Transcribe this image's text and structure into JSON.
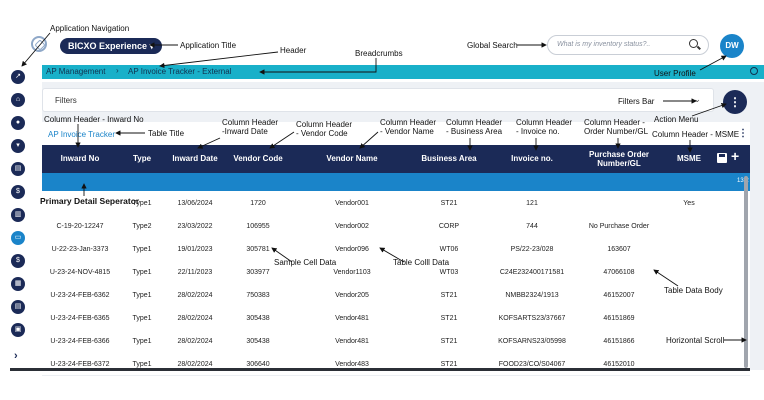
{
  "app": {
    "title": "BICXO Experience",
    "title_caret": "▾",
    "user_initials": "DW"
  },
  "search": {
    "placeholder": "What is my inventory status?.."
  },
  "breadcrumbs": [
    "AP Management",
    "AP Invoice Tracker - External"
  ],
  "breadcrumb_separator": "›",
  "filters": {
    "label": "Filters",
    "chevron": "⌄"
  },
  "action_menu_glyph": "⋮",
  "table": {
    "title": "AP Invoice Tracker",
    "menu_glyph": "⋮",
    "add_glyph": "+",
    "columns": [
      "Inward No",
      "Type",
      "Inward Date",
      "Vendor Code",
      "Vendor Name",
      "Business Area",
      "Invoice no.",
      "Purchase Order Number/GL",
      "MSME"
    ],
    "detail_separator_text": "13.2",
    "rows": [
      [
        "",
        "Type1",
        "13/06/2024",
        "1720",
        "Vendor001",
        "ST21",
        "121",
        "",
        "Yes"
      ],
      [
        "C-19-20-12247",
        "Type2",
        "23/03/2022",
        "106955",
        "Vendor002",
        "CORP",
        "744",
        "No Purchase Order",
        ""
      ],
      [
        "U-22-23-Jan-3373",
        "Type1",
        "19/01/2023",
        "305781",
        "Vendor096",
        "WT06",
        "PS/22-23/028",
        "163607",
        ""
      ],
      [
        "U-23-24-NOV-4815",
        "Type1",
        "22/11/2023",
        "303977",
        "Vendor1103",
        "WT03",
        "C24E232400171581",
        "47066108",
        ""
      ],
      [
        "U-23-24-FEB-6362",
        "Type1",
        "28/02/2024",
        "750383",
        "Vendor205",
        "ST21",
        "NMBB2324/1913",
        "46152007",
        ""
      ],
      [
        "U-23-24-FEB-6365",
        "Type1",
        "28/02/2024",
        "305438",
        "Vendor481",
        "ST21",
        "KOFSARTS23/37667",
        "46151869",
        ""
      ],
      [
        "U-23-24-FEB-6366",
        "Type1",
        "28/02/2024",
        "305438",
        "Vendor481",
        "ST21",
        "KOFSARNS23/05998",
        "46151866",
        ""
      ],
      [
        "U-23-24-FEB-6372",
        "Type1",
        "28/02/2024",
        "306640",
        "Vendor483",
        "ST21",
        "FOOD23/CO/S04067",
        "46152010",
        ""
      ]
    ]
  },
  "sidebar": {
    "icons": [
      "trend-icon",
      "home-icon",
      "user-icon",
      "filter-icon",
      "document-icon",
      "dollar-icon",
      "report-icon",
      "card-icon",
      "money-icon",
      "grid-icon",
      "notes-icon",
      "file-icon"
    ],
    "expand_glyph": "›"
  },
  "annotations": {
    "application_navigation": "Application Navigation",
    "application_title": "Application Title",
    "header": "Header",
    "breadcrumbs": "Breadcrumbs",
    "global_search": "Global Search",
    "user_profile": "User Profile",
    "column_header_inward_no": "Column Header - Inward No",
    "table_title": "Table Title",
    "column_header_inward_date": "Column Header\n-Inward Date",
    "column_header_vendor_code": "Column Header\n- Vendor Code",
    "column_header_vendor_name": "Column Header\n- Vendor Name",
    "column_header_business_area": "Column Header\n- Business Area",
    "column_header_invoice_no": "Column Header\n- Invoice no.",
    "column_header_order_number": "Column Header -\nOrder Number/GL",
    "filters_bar": "Filters Bar",
    "action_menu": "Action Menu",
    "column_header_msme": "Column Header - MSME",
    "primary_detail_separator": "Primary Detail Seperator",
    "sample_cell_data": "Sample Cell Data",
    "table_cell_data": "Table Colll Data",
    "table_data_body": "Table Data Body",
    "horizontal_scroll": "Horizontal Scroll"
  }
}
